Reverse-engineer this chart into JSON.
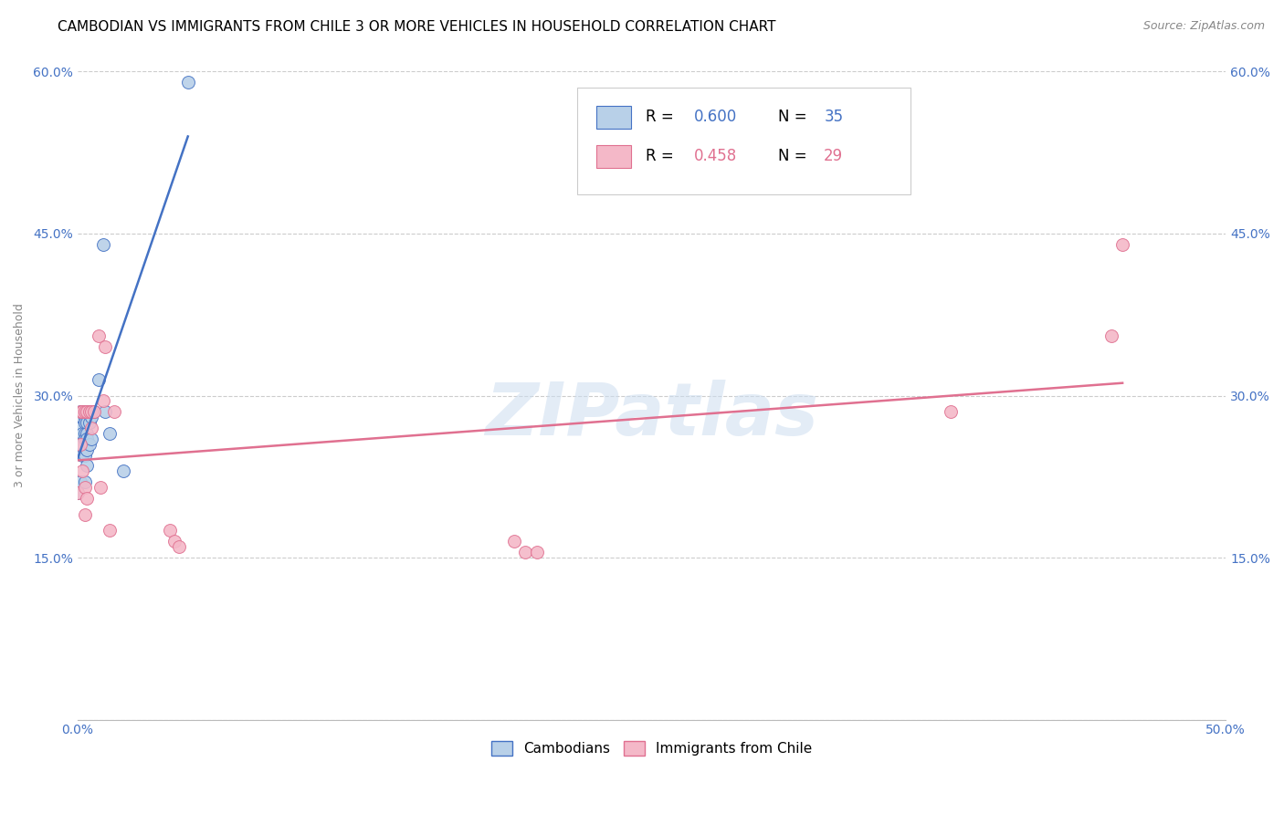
{
  "title": "CAMBODIAN VS IMMIGRANTS FROM CHILE 3 OR MORE VEHICLES IN HOUSEHOLD CORRELATION CHART",
  "source": "Source: ZipAtlas.com",
  "ylabel": "3 or more Vehicles in Household",
  "xlim": [
    0.0,
    0.5
  ],
  "ylim": [
    0.0,
    0.6
  ],
  "xticks": [
    0.0,
    0.05,
    0.1,
    0.15,
    0.2,
    0.25,
    0.3,
    0.35,
    0.4,
    0.45,
    0.5
  ],
  "xtick_labels": [
    "0.0%",
    "",
    "",
    "",
    "",
    "",
    "",
    "",
    "",
    "",
    "50.0%"
  ],
  "yticks": [
    0.0,
    0.15,
    0.3,
    0.45,
    0.6
  ],
  "ytick_labels": [
    "",
    "15.0%",
    "30.0%",
    "45.0%",
    "60.0%"
  ],
  "blue_color": "#b8d0e8",
  "pink_color": "#f4b8c8",
  "blue_line_color": "#4472c4",
  "pink_line_color": "#e07090",
  "legend_label_blue": "Cambodians",
  "legend_label_pink": "Immigrants from Chile",
  "cambodian_x": [
    0.0,
    0.001,
    0.001,
    0.001,
    0.002,
    0.002,
    0.002,
    0.002,
    0.002,
    0.003,
    0.003,
    0.003,
    0.003,
    0.003,
    0.003,
    0.003,
    0.004,
    0.004,
    0.004,
    0.004,
    0.004,
    0.004,
    0.004,
    0.005,
    0.005,
    0.005,
    0.006,
    0.006,
    0.007,
    0.009,
    0.011,
    0.012,
    0.014,
    0.02,
    0.048
  ],
  "cambodian_y": [
    0.21,
    0.285,
    0.27,
    0.22,
    0.285,
    0.28,
    0.265,
    0.255,
    0.245,
    0.285,
    0.28,
    0.275,
    0.265,
    0.26,
    0.245,
    0.22,
    0.285,
    0.285,
    0.275,
    0.265,
    0.26,
    0.25,
    0.235,
    0.285,
    0.275,
    0.255,
    0.28,
    0.26,
    0.285,
    0.315,
    0.44,
    0.285,
    0.265,
    0.23,
    0.59
  ],
  "chile_x": [
    0.0,
    0.001,
    0.001,
    0.002,
    0.002,
    0.003,
    0.003,
    0.003,
    0.004,
    0.004,
    0.005,
    0.006,
    0.006,
    0.007,
    0.009,
    0.01,
    0.011,
    0.012,
    0.014,
    0.016,
    0.04,
    0.042,
    0.044,
    0.19,
    0.195,
    0.2,
    0.38,
    0.45,
    0.455
  ],
  "chile_y": [
    0.21,
    0.285,
    0.255,
    0.285,
    0.23,
    0.285,
    0.215,
    0.19,
    0.285,
    0.205,
    0.285,
    0.285,
    0.27,
    0.285,
    0.355,
    0.215,
    0.295,
    0.345,
    0.175,
    0.285,
    0.175,
    0.165,
    0.16,
    0.165,
    0.155,
    0.155,
    0.285,
    0.355,
    0.44
  ],
  "watermark": "ZIPatlas",
  "title_fontsize": 11,
  "axis_label_fontsize": 9,
  "tick_fontsize": 10,
  "legend_fontsize": 12
}
